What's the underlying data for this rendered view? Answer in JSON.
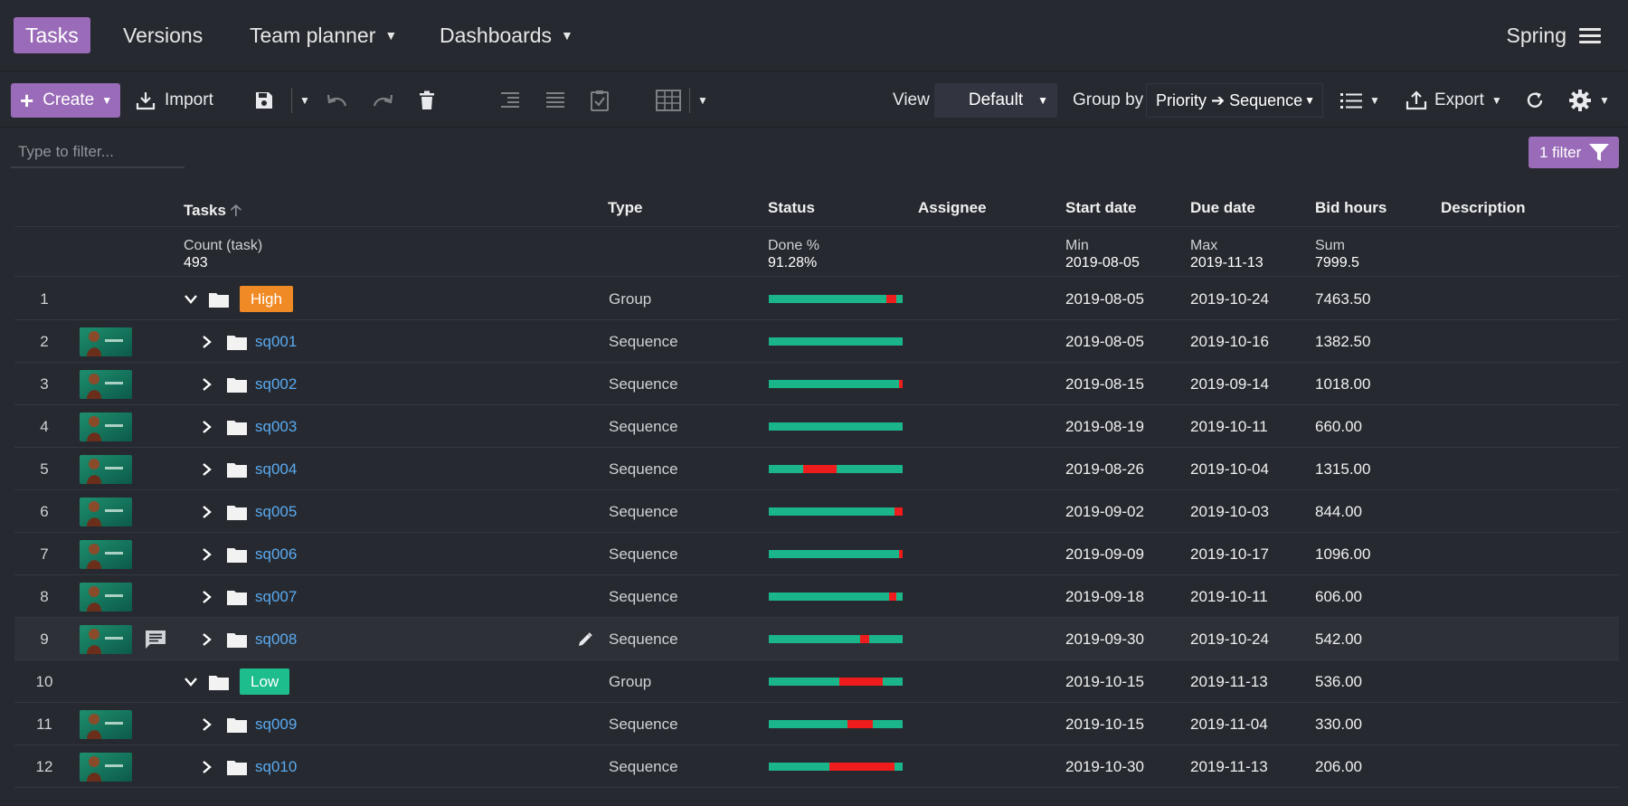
{
  "nav": {
    "tabs": [
      {
        "label": "Tasks",
        "active": true,
        "dropdown": false
      },
      {
        "label": "Versions",
        "active": false,
        "dropdown": false
      },
      {
        "label": "Team planner",
        "active": false,
        "dropdown": true
      },
      {
        "label": "Dashboards",
        "active": false,
        "dropdown": true
      }
    ],
    "project": "Spring"
  },
  "toolbar": {
    "create_label": "Create",
    "import_label": "Import",
    "view_label": "View",
    "view_value": "Default",
    "groupby_label": "Group by",
    "groupby_value": "Priority ➔ Sequence",
    "export_label": "Export"
  },
  "filter": {
    "placeholder": "Type to filter...",
    "badge": "1 filter"
  },
  "columns": {
    "tasks": "Tasks",
    "type": "Type",
    "status": "Status",
    "assignee": "Assignee",
    "start": "Start date",
    "due": "Due date",
    "bid": "Bid hours",
    "description": "Description"
  },
  "summary": {
    "tasks_label": "Count (task)",
    "tasks_value": "493",
    "status_label": "Done %",
    "status_value": "91.28%",
    "start_label": "Min",
    "start_value": "2019-08-05",
    "due_label": "Max",
    "due_value": "2019-11-13",
    "bid_label": "Sum",
    "bid_value": "7999.5"
  },
  "colors": {
    "accent": "#9a6bb8",
    "high": "#f08a24",
    "low": "#1dbd8e",
    "done": "#1bb58a",
    "late": "#ee1c1c",
    "link": "#5aa9f0"
  },
  "rows": [
    {
      "num": "1",
      "kind": "group",
      "name": "High",
      "badge_color": "#f08a24",
      "type": "Group",
      "start": "2019-08-05",
      "due": "2019-10-24",
      "bid": "7463.50",
      "status": [
        [
          0,
          0.88,
          "g"
        ],
        [
          0.88,
          0.95,
          "r"
        ],
        [
          0.95,
          1,
          "g"
        ]
      ]
    },
    {
      "num": "2",
      "kind": "seq",
      "name": "sq001",
      "type": "Sequence",
      "start": "2019-08-05",
      "due": "2019-10-16",
      "bid": "1382.50",
      "status": [
        [
          0,
          1,
          "g"
        ]
      ]
    },
    {
      "num": "3",
      "kind": "seq",
      "name": "sq002",
      "type": "Sequence",
      "start": "2019-08-15",
      "due": "2019-09-14",
      "bid": "1018.00",
      "status": [
        [
          0,
          0.97,
          "g"
        ],
        [
          0.97,
          1,
          "r"
        ]
      ]
    },
    {
      "num": "4",
      "kind": "seq",
      "name": "sq003",
      "type": "Sequence",
      "start": "2019-08-19",
      "due": "2019-10-11",
      "bid": "660.00",
      "status": [
        [
          0,
          1,
          "g"
        ]
      ]
    },
    {
      "num": "5",
      "kind": "seq",
      "name": "sq004",
      "type": "Sequence",
      "start": "2019-08-26",
      "due": "2019-10-04",
      "bid": "1315.00",
      "status": [
        [
          0,
          0.26,
          "g"
        ],
        [
          0.26,
          0.51,
          "r"
        ],
        [
          0.51,
          1,
          "g"
        ]
      ]
    },
    {
      "num": "6",
      "kind": "seq",
      "name": "sq005",
      "type": "Sequence",
      "start": "2019-09-02",
      "due": "2019-10-03",
      "bid": "844.00",
      "status": [
        [
          0,
          0.94,
          "g"
        ],
        [
          0.94,
          1,
          "r"
        ]
      ]
    },
    {
      "num": "7",
      "kind": "seq",
      "name": "sq006",
      "type": "Sequence",
      "start": "2019-09-09",
      "due": "2019-10-17",
      "bid": "1096.00",
      "status": [
        [
          0,
          0.97,
          "g"
        ],
        [
          0.97,
          1,
          "r"
        ]
      ]
    },
    {
      "num": "8",
      "kind": "seq",
      "name": "sq007",
      "type": "Sequence",
      "start": "2019-09-18",
      "due": "2019-10-11",
      "bid": "606.00",
      "status": [
        [
          0,
          0.9,
          "g"
        ],
        [
          0.9,
          0.95,
          "r"
        ],
        [
          0.95,
          1,
          "g"
        ]
      ]
    },
    {
      "num": "9",
      "kind": "seq",
      "name": "sq008",
      "type": "Sequence",
      "start": "2019-09-30",
      "due": "2019-10-24",
      "bid": "542.00",
      "comment": true,
      "edit": true,
      "highlight": true,
      "status": [
        [
          0,
          0.68,
          "g"
        ],
        [
          0.68,
          0.75,
          "r"
        ],
        [
          0.75,
          1,
          "g"
        ]
      ]
    },
    {
      "num": "10",
      "kind": "group",
      "name": "Low",
      "badge_color": "#1dbd8e",
      "type": "Group",
      "start": "2019-10-15",
      "due": "2019-11-13",
      "bid": "536.00",
      "status": [
        [
          0,
          0.53,
          "g"
        ],
        [
          0.53,
          0.85,
          "r"
        ],
        [
          0.85,
          1,
          "g"
        ]
      ]
    },
    {
      "num": "11",
      "kind": "seq",
      "name": "sq009",
      "type": "Sequence",
      "start": "2019-10-15",
      "due": "2019-11-04",
      "bid": "330.00",
      "status": [
        [
          0,
          0.59,
          "g"
        ],
        [
          0.59,
          0.78,
          "r"
        ],
        [
          0.78,
          1,
          "g"
        ]
      ]
    },
    {
      "num": "12",
      "kind": "seq",
      "name": "sq010",
      "type": "Sequence",
      "start": "2019-10-30",
      "due": "2019-11-13",
      "bid": "206.00",
      "status": [
        [
          0,
          0.45,
          "g"
        ],
        [
          0.45,
          0.94,
          "r"
        ],
        [
          0.94,
          1,
          "g"
        ]
      ]
    }
  ]
}
